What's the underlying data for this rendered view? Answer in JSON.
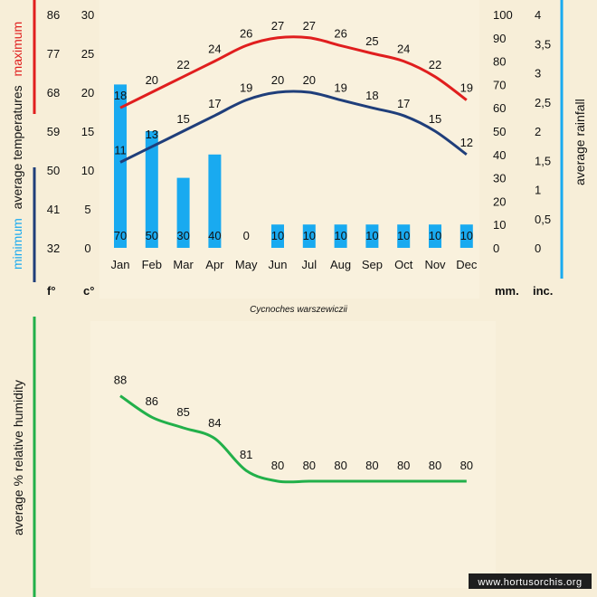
{
  "chart_data": [
    {
      "type": "bar+line",
      "title": "",
      "caption": "Cycnoches warszewiczii",
      "categories": [
        "Jan",
        "Feb",
        "Mar",
        "Apr",
        "May",
        "Jun",
        "Jul",
        "Aug",
        "Sep",
        "Oct",
        "Nov",
        "Dec"
      ],
      "series": [
        {
          "name": "maximum",
          "kind": "line",
          "axis": "celsius",
          "color": "#e01e1e",
          "values": [
            18,
            20,
            22,
            24,
            26,
            27,
            27,
            26,
            25,
            24,
            22,
            19
          ]
        },
        {
          "name": "minimum",
          "kind": "line",
          "axis": "celsius",
          "color": "#1f3e7a",
          "values": [
            11,
            13,
            15,
            17,
            19,
            20,
            20,
            19,
            18,
            17,
            15,
            12
          ]
        },
        {
          "name": "average rainfall",
          "kind": "bar",
          "axis": "mm",
          "color": "#19aaf0",
          "values": [
            70,
            50,
            30,
            40,
            0,
            10,
            10,
            10,
            10,
            10,
            10,
            10
          ]
        }
      ],
      "axes": {
        "fahrenheit": {
          "unit": "f°",
          "ticks": [
            "32",
            "41",
            "50",
            "59",
            "68",
            "77",
            "86"
          ]
        },
        "celsius": {
          "unit": "c°",
          "min": 0,
          "max": 30,
          "ticks": [
            "0",
            "5",
            "10",
            "15",
            "20",
            "25",
            "30"
          ]
        },
        "mm": {
          "unit": "mm.",
          "min": 0,
          "max": 100,
          "ticks": [
            "0",
            "10",
            "20",
            "30",
            "40",
            "50",
            "60",
            "70",
            "80",
            "90",
            "100"
          ]
        },
        "inches": {
          "unit": "inc.",
          "ticks": [
            "0",
            "0,5",
            "1",
            "1,5",
            "2",
            "2,5",
            "3",
            "3,5",
            "4"
          ]
        }
      },
      "left_title": {
        "minimum": "minimum",
        "middle": "average  temperatures",
        "maximum": "maximum"
      },
      "right_title": "average rainfall",
      "grid": false
    },
    {
      "type": "line",
      "title": "",
      "categories": [
        "Jan",
        "Feb",
        "Mar",
        "Apr",
        "May",
        "Jun",
        "Jul",
        "Aug",
        "Sep",
        "Oct",
        "Nov",
        "Dec"
      ],
      "series": [
        {
          "name": "average % relative humidity",
          "color": "#22b04a",
          "values": [
            88,
            86,
            85,
            84,
            81,
            80,
            80,
            80,
            80,
            80,
            80,
            80
          ]
        }
      ],
      "ylabel": "average %  relative humidity",
      "ylim": [
        70,
        95
      ],
      "grid": false
    }
  ],
  "colors": {
    "background": "#f7eed8",
    "panel": "#f9f1dd",
    "max_line": "#e01e1e",
    "min_line": "#1f3e7a",
    "rain_bar": "#19aaf0",
    "humidity_line": "#22b04a"
  },
  "watermark": "www.hortusorchis.org"
}
